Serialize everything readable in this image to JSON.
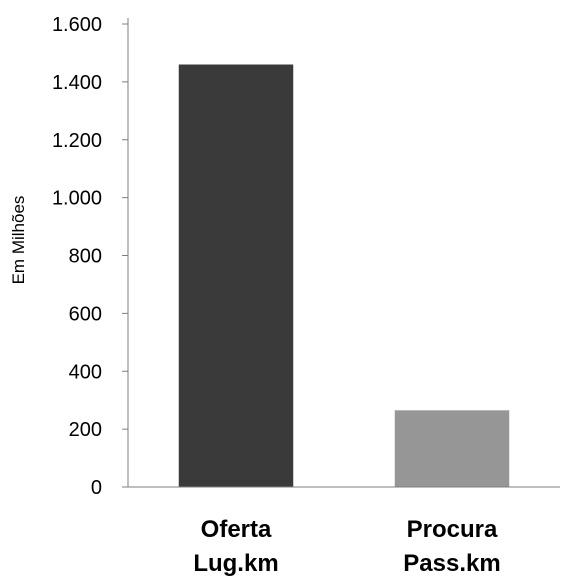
{
  "chart_data": {
    "type": "bar",
    "title": "",
    "xlabel": "",
    "ylabel": "Em Milhões",
    "ylim": [
      0,
      1600
    ],
    "yticks": [
      0,
      200,
      400,
      600,
      800,
      1000,
      1200,
      1400,
      1600
    ],
    "ytick_labels": [
      "0",
      "200",
      "400",
      "600",
      "800",
      "1.000",
      "1.200",
      "1.400",
      "1.600"
    ],
    "categories": [
      [
        "Oferta",
        "Lug.km"
      ],
      [
        "Procura",
        "Pass.km"
      ]
    ],
    "values": [
      1460,
      265
    ],
    "colors": [
      "#3a3a3a",
      "#969696"
    ],
    "grid": false,
    "legend": "none"
  }
}
